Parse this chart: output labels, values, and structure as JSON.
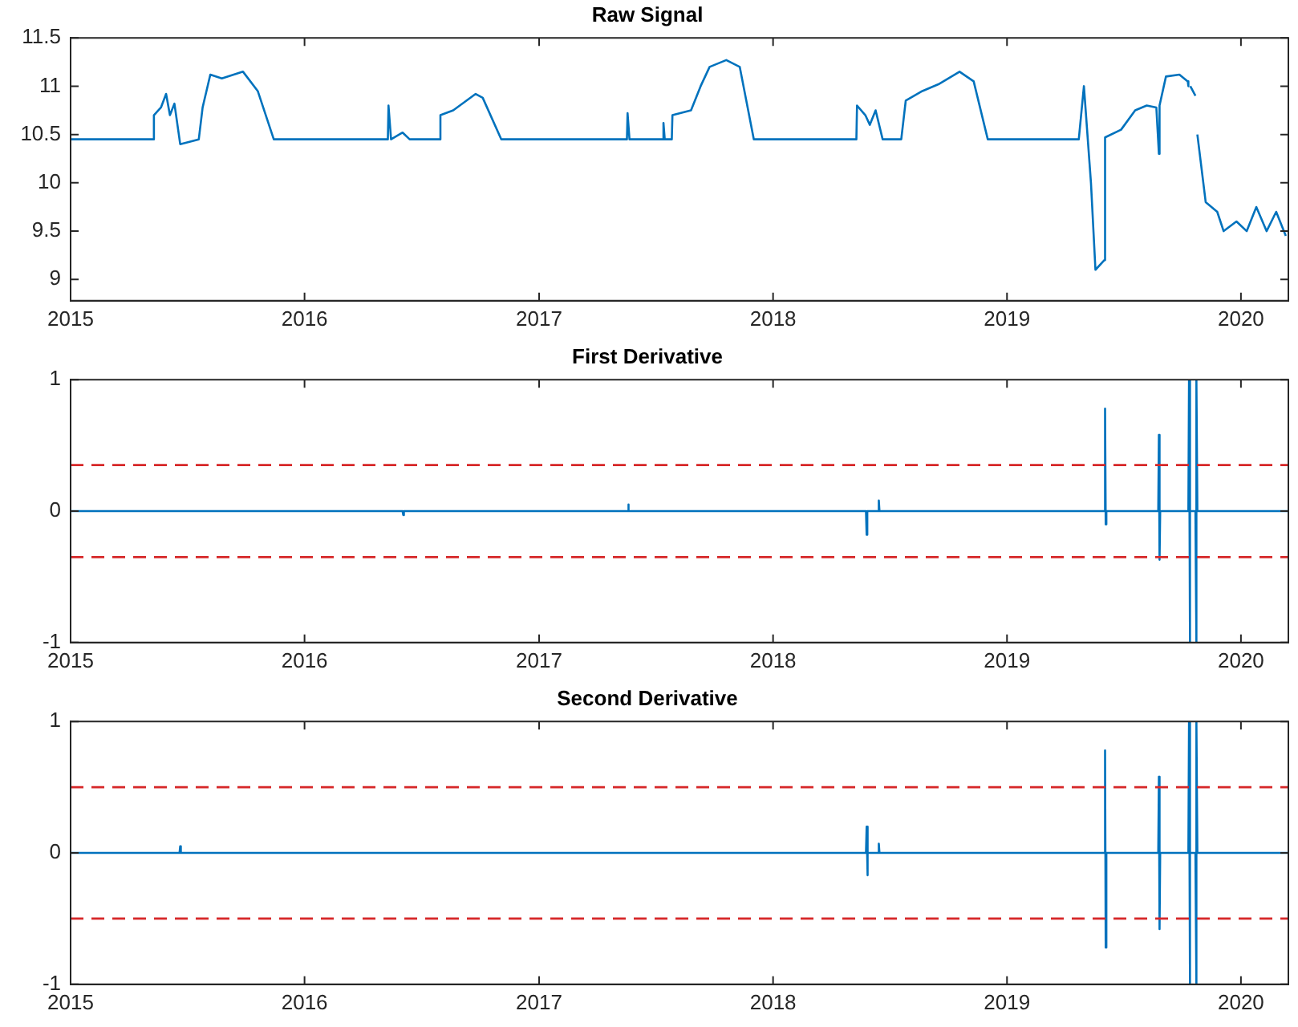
{
  "chart_data": [
    {
      "type": "line",
      "title": "Raw Signal",
      "xlim": [
        "2015-01-01",
        "2020-03-15"
      ],
      "xticks": [
        "2015",
        "2016",
        "2017",
        "2018",
        "2019",
        "2020"
      ],
      "ylim": [
        8.78,
        11.5
      ],
      "yticks": [
        9,
        9.5,
        10,
        10.5,
        11,
        11.5
      ],
      "grid": false,
      "legend": false,
      "marker": "none",
      "line_style": "solid",
      "series": [
        {
          "color": "#0072bd",
          "x": [
            "2015-01-01",
            "2015-05-10",
            "2015-05-11",
            "2015-05-22",
            "2015-05-30",
            "2015-06-05",
            "2015-06-12",
            "2015-06-21",
            "2015-07-20",
            "2015-07-26",
            "2015-08-07",
            "2015-08-25",
            "2015-09-27",
            "2015-10-20",
            "2015-11-14",
            "2016-05-10",
            "2016-05-11",
            "2016-05-15",
            "2016-06-02",
            "2016-06-13",
            "2016-07-30",
            "2016-07-31",
            "2016-08-20",
            "2016-09-24",
            "2016-10-05",
            "2016-11-03",
            "2017-05-18",
            "2017-05-19",
            "2017-05-22",
            "2017-07-13",
            "2017-07-14",
            "2017-07-16",
            "2017-07-27",
            "2017-07-28",
            "2017-08-26",
            "2017-09-10",
            "2017-09-24",
            "2017-10-20",
            "2017-11-10",
            "2017-12-02",
            "2018-05-11",
            "2018-05-12",
            "2018-05-25",
            "2018-06-01",
            "2018-06-10",
            "2018-06-21",
            "2018-07-20",
            "2018-07-27",
            "2018-08-22",
            "2018-09-16",
            "2018-10-19",
            "2018-11-10",
            "2018-12-02",
            "2019-04-23",
            "2019-05-01",
            "2019-05-12",
            "2019-05-19",
            "2019-06-02",
            "2019-06-03",
            "2019-06-28",
            "2019-07-20",
            "2019-08-07",
            "2019-08-22",
            "2019-08-26",
            "2019-08-27",
            "2019-09-06",
            "2019-09-27",
            "2019-10-10",
            "2019-10-11",
            "2019-10-12",
            "2019-10-14",
            "2019-10-22",
            "2019-10-23",
            "2019-10-25",
            "2019-11-07",
            "2019-11-25",
            "2019-12-05",
            "2019-12-25",
            "2020-01-10",
            "2020-01-25",
            "2020-02-10",
            "2020-02-25",
            "2020-03-11"
          ],
          "values": [
            10.45,
            10.45,
            10.7,
            10.78,
            10.92,
            10.7,
            10.82,
            10.4,
            10.45,
            10.78,
            11.12,
            11.08,
            11.15,
            10.95,
            10.45,
            10.45,
            10.8,
            10.45,
            10.52,
            10.45,
            10.45,
            10.7,
            10.75,
            10.92,
            10.88,
            10.45,
            10.45,
            10.72,
            10.45,
            10.45,
            10.62,
            10.45,
            10.45,
            10.7,
            10.75,
            11.0,
            11.2,
            11.27,
            11.2,
            10.45,
            10.45,
            10.8,
            10.7,
            10.6,
            10.75,
            10.45,
            10.45,
            10.85,
            10.95,
            11.02,
            11.15,
            11.05,
            10.45,
            10.45,
            11.0,
            10.0,
            9.1,
            9.2,
            10.47,
            10.55,
            10.75,
            10.8,
            10.78,
            10.3,
            10.8,
            11.1,
            11.12,
            11.05,
            11.0,
            null,
            11.0,
            10.9,
            null,
            10.5,
            9.8,
            9.7,
            9.5,
            9.6,
            9.5,
            9.75,
            9.5,
            9.7,
            9.45
          ]
        }
      ]
    },
    {
      "type": "line",
      "title": "First Derivative",
      "xlim": [
        "2015-01-01",
        "2020-03-15"
      ],
      "xticks": [
        "2015",
        "2016",
        "2017",
        "2018",
        "2019",
        "2020"
      ],
      "ylim": [
        -1,
        1
      ],
      "yticks": [
        -1,
        0,
        1
      ],
      "grid": false,
      "legend": false,
      "marker": "none",
      "line_style": "solid",
      "ref_lines": [
        {
          "axis": "y",
          "value": 0.35,
          "color": "#d62728",
          "line_style": "dashed"
        },
        {
          "axis": "y",
          "value": -0.35,
          "color": "#d62728",
          "line_style": "dashed"
        }
      ],
      "series": [
        {
          "color": "#0072bd",
          "x": [
            "2015-01-01",
            "2016-06-02",
            "2016-06-03",
            "2016-06-04",
            "2017-05-19",
            "2017-05-20",
            "2017-05-21",
            "2018-05-26",
            "2018-05-27",
            "2018-05-28",
            "2018-06-14",
            "2018-06-15",
            "2018-06-16",
            "2019-06-02",
            "2019-06-03",
            "2019-06-04",
            "2019-06-05",
            "2019-08-25",
            "2019-08-26",
            "2019-08-27",
            "2019-08-28",
            "2019-10-11",
            "2019-10-12",
            "2019-10-13",
            "2019-10-14",
            "2019-10-22",
            "2019-10-23",
            "2019-10-24",
            "2019-10-25",
            "2020-03-15"
          ],
          "values": [
            0,
            0,
            -0.03,
            0,
            0,
            0.05,
            0,
            0,
            -0.18,
            0,
            0,
            0.08,
            0,
            0,
            0.78,
            -0.1,
            0,
            0,
            0.58,
            -0.37,
            0,
            0,
            1,
            -1,
            0,
            0,
            -1,
            1,
            0,
            0
          ]
        }
      ]
    },
    {
      "type": "line",
      "title": "Second Derivative",
      "xlim": [
        "2015-01-01",
        "2020-03-15"
      ],
      "xticks": [
        "2015",
        "2016",
        "2017",
        "2018",
        "2019",
        "2020"
      ],
      "ylim": [
        -1,
        1
      ],
      "yticks": [
        -1,
        0,
        1
      ],
      "grid": false,
      "legend": false,
      "marker": "none",
      "line_style": "solid",
      "ref_lines": [
        {
          "axis": "y",
          "value": 0.5,
          "color": "#d62728",
          "line_style": "dashed"
        },
        {
          "axis": "y",
          "value": -0.5,
          "color": "#d62728",
          "line_style": "dashed"
        }
      ],
      "series": [
        {
          "color": "#0072bd",
          "x": [
            "2015-01-01",
            "2015-06-20",
            "2015-06-21",
            "2015-06-22",
            "2018-05-26",
            "2018-05-27",
            "2018-05-28",
            "2018-05-29",
            "2018-06-14",
            "2018-06-15",
            "2018-06-16",
            "2019-06-02",
            "2019-06-03",
            "2019-06-04",
            "2019-06-05",
            "2019-08-25",
            "2019-08-26",
            "2019-08-27",
            "2019-08-28",
            "2019-10-11",
            "2019-10-12",
            "2019-10-13",
            "2019-10-14",
            "2019-10-22",
            "2019-10-23",
            "2019-10-24",
            "2019-10-25",
            "2020-03-15"
          ],
          "values": [
            0,
            0,
            0.05,
            0,
            0,
            0.2,
            -0.17,
            0,
            0,
            0.07,
            0,
            0,
            0.78,
            -0.72,
            0,
            0,
            0.58,
            -0.58,
            0,
            0,
            1,
            -1,
            0,
            0,
            -1,
            1,
            0,
            0
          ]
        }
      ]
    }
  ]
}
